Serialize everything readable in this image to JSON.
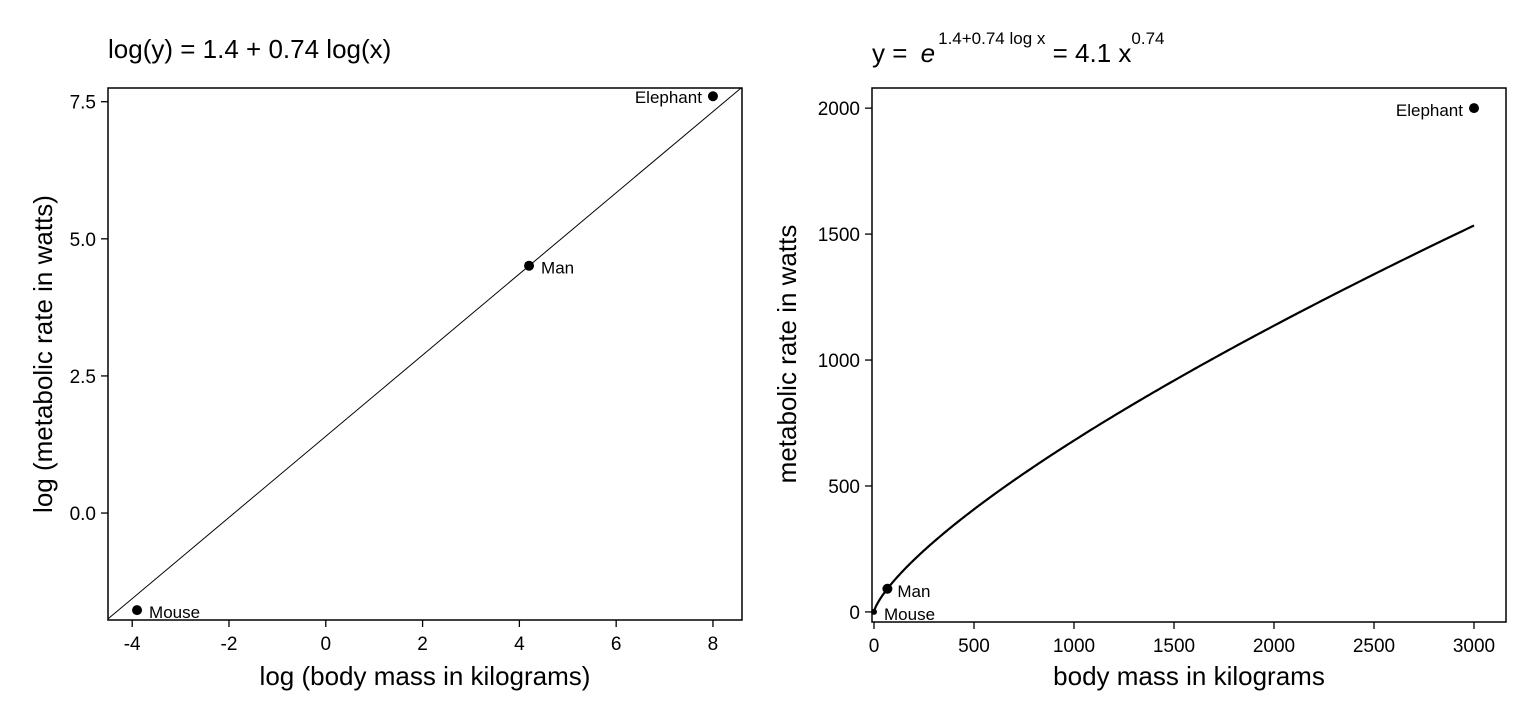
{
  "chart_data": [
    {
      "type": "line",
      "title_parts": {
        "prefix": "log(y) = ",
        "intercept": "1.4",
        "plus": " + ",
        "slope": "0.74",
        "suffix": " log(x)"
      },
      "xlabel": "log (body mass in kilograms)",
      "ylabel": "log (metabolic rate in watts)",
      "xlim": [
        -4.5,
        8.6
      ],
      "ylim": [
        -1.95,
        7.75
      ],
      "xticks": [
        "-4",
        "-2",
        "0",
        "2",
        "4",
        "6",
        "8"
      ],
      "xtick_values": [
        -4,
        -2,
        0,
        2,
        4,
        6,
        8
      ],
      "yticks": [
        "0.0",
        "2.5",
        "5.0",
        "7.5"
      ],
      "ytick_values": [
        0,
        2.5,
        5,
        7.5
      ],
      "fit_line": {
        "intercept": 1.4,
        "slope": 0.74
      },
      "points": [
        {
          "name": "Mouse",
          "x": -3.9,
          "y": -1.77
        },
        {
          "name": "Man",
          "x": 4.2,
          "y": 4.51
        },
        {
          "name": "Elephant",
          "x": 8.0,
          "y": 7.6
        }
      ],
      "grid": false
    },
    {
      "type": "line",
      "title_parts": {
        "lhs": "y = ",
        "base": "e",
        "exponent": "1.4+0.74 log x",
        "equals": " = 4.1 x",
        "power": "0.74"
      },
      "xlabel": "body mass in kilograms",
      "ylabel": "metabolic rate in watts",
      "xlim": [
        -10,
        3160
      ],
      "ylim": [
        -40,
        2080
      ],
      "xticks": [
        "0",
        "500",
        "1000",
        "1500",
        "2000",
        "2500",
        "3000"
      ],
      "xtick_values": [
        0,
        500,
        1000,
        1500,
        2000,
        2500,
        3000
      ],
      "yticks": [
        "0",
        "500",
        "1000",
        "1500",
        "2000"
      ],
      "ytick_values": [
        0,
        500,
        1000,
        1500,
        2000
      ],
      "curve": {
        "coefficient": 4.1,
        "exponent": 0.74,
        "x_max": 3000
      },
      "points": [
        {
          "name": "Mouse",
          "x": 0.02,
          "y": 0.2
        },
        {
          "name": "Man",
          "x": 67,
          "y": 92
        },
        {
          "name": "Elephant",
          "x": 3000,
          "y": 2000
        }
      ],
      "grid": false
    }
  ]
}
